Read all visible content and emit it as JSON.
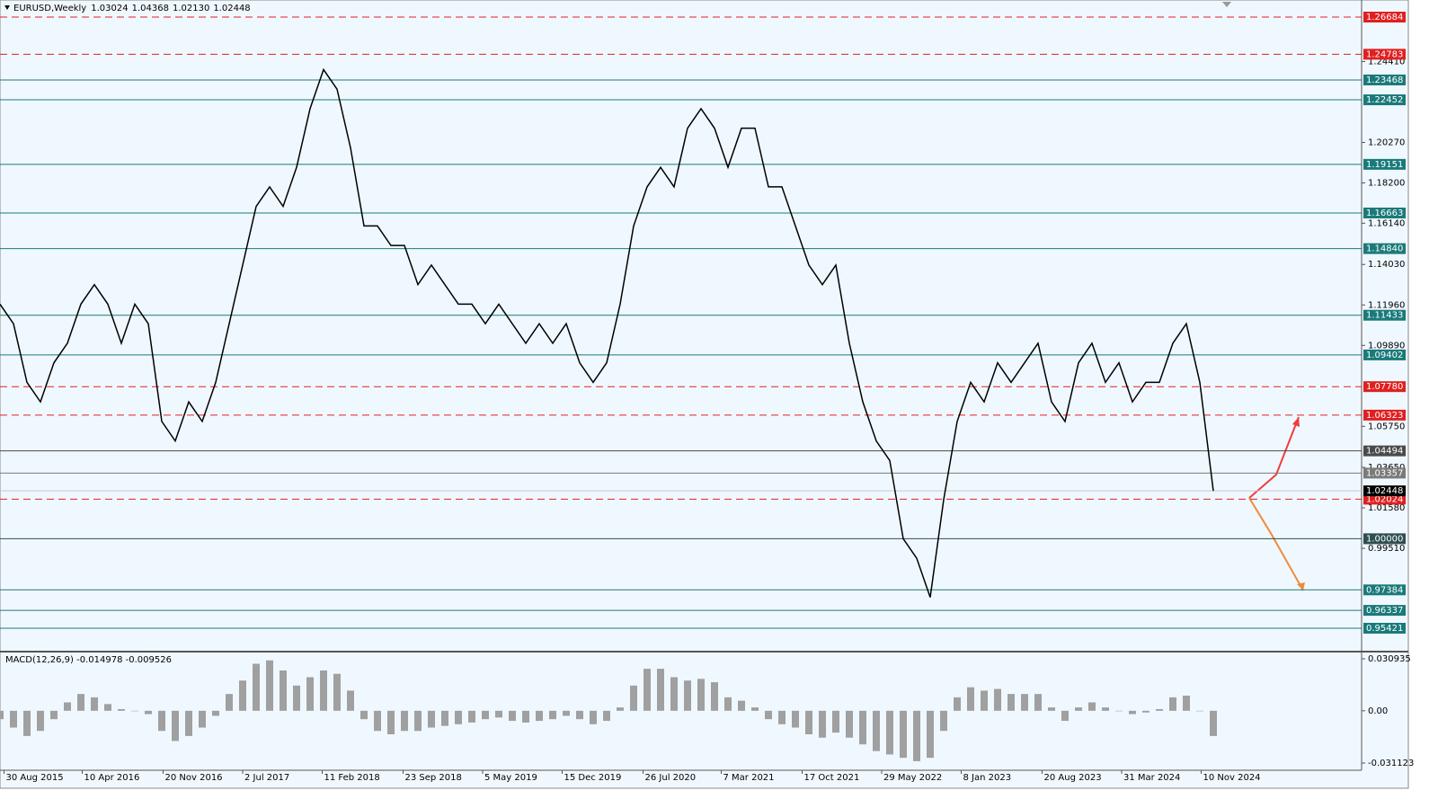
{
  "chart_data": {
    "type": "line",
    "symbol": "EURUSD,Weekly",
    "open": 1.03024,
    "high": 1.04368,
    "low": 1.0213,
    "close": 1.02448,
    "ohlc_labels": [
      "1.03024",
      "1.04368",
      "1.02130",
      "1.02448"
    ],
    "current_price": 1.02448,
    "xlim": [
      0,
      101
    ],
    "xticks": [
      {
        "value": 0.3,
        "label": "30 Aug 2015"
      },
      {
        "value": 6.1,
        "label": "10 Apr 2016"
      },
      {
        "value": 12.1,
        "label": "20 Nov 2016"
      },
      {
        "value": 18,
        "label": "2 Jul 2017"
      },
      {
        "value": 23.9,
        "label": "11 Feb 2018"
      },
      {
        "value": 29.9,
        "label": "23 Sep 2018"
      },
      {
        "value": 35.8,
        "label": "5 May 2019"
      },
      {
        "value": 41.7,
        "label": "15 Dec 2019"
      },
      {
        "value": 47.7,
        "label": "26 Jul 2020"
      },
      {
        "value": 53.5,
        "label": "7 Mar 2021"
      },
      {
        "value": 59.5,
        "label": "17 Oct 2021"
      },
      {
        "value": 65.4,
        "label": "29 May 2022"
      },
      {
        "value": 71.3,
        "label": "8 Jan 2023"
      },
      {
        "value": 77.3,
        "label": "20 Aug 2023"
      },
      {
        "value": 83.2,
        "label": "31 Mar 2024"
      },
      {
        "value": 89.1,
        "label": "10 Nov 2024"
      }
    ],
    "ylim": [
      0.94226,
      1.27558
    ],
    "yticks": [
      {
        "value": 1.2441,
        "label": "1.24410"
      },
      {
        "value": 1.2027,
        "label": "1.20270"
      },
      {
        "value": 1.182,
        "label": "1.18200"
      },
      {
        "value": 1.1614,
        "label": "1.16140"
      },
      {
        "value": 1.1403,
        "label": "1.14030"
      },
      {
        "value": 1.1196,
        "label": "1.11960"
      },
      {
        "value": 1.0989,
        "label": "1.09890"
      },
      {
        "value": 1.0575,
        "label": "1.05750"
      },
      {
        "value": 1.0365,
        "label": "1.03650"
      },
      {
        "value": 1.0158,
        "label": "1.01580"
      },
      {
        "value": 0.9951,
        "label": "0.99510"
      }
    ],
    "levels": [
      {
        "value": 1.26684,
        "color": "#e02020",
        "style": "dashed"
      },
      {
        "value": 1.24783,
        "color": "#e02020",
        "style": "dashed"
      },
      {
        "value": 1.23468,
        "color": "#1a7a7a",
        "style": "solid"
      },
      {
        "value": 1.22452,
        "color": "#1a7a7a",
        "style": "solid"
      },
      {
        "value": 1.19151,
        "color": "#1a7a7a",
        "style": "solid"
      },
      {
        "value": 1.16663,
        "color": "#1a7a7a",
        "style": "solid"
      },
      {
        "value": 1.1484,
        "label": "1.14840",
        "color": "#1a7a7a",
        "style": "solid"
      },
      {
        "value": 1.11433,
        "color": "#1a7a7a",
        "style": "solid"
      },
      {
        "value": 1.09402,
        "color": "#1a7a7a",
        "style": "solid"
      },
      {
        "value": 1.0778,
        "label": "1.07780",
        "color": "#e02020",
        "style": "dashed"
      },
      {
        "value": 1.06323,
        "color": "#e02020",
        "style": "dashed"
      },
      {
        "value": 1.04494,
        "color": "#4a4a4a",
        "style": "solid"
      },
      {
        "value": 1.03357,
        "color": "#7a7a7a",
        "style": "solid"
      },
      {
        "value": 1.02024,
        "color": "#e02020",
        "style": "dashed"
      },
      {
        "value": 1,
        "label": "1.00000",
        "color": "#2f4f4f",
        "style": "solid"
      },
      {
        "value": 0.97384,
        "color": "#1a7a7a",
        "style": "solid"
      },
      {
        "value": 0.96337,
        "color": "#1a7a7a",
        "style": "solid"
      },
      {
        "value": 0.95421,
        "color": "#1a7a7a",
        "style": "solid"
      }
    ],
    "series": [
      {
        "name": "EURUSD",
        "color": "#000000",
        "values": [
          1.12,
          1.11,
          1.08,
          1.07,
          1.09,
          1.1,
          1.12,
          1.13,
          1.12,
          1.1,
          1.12,
          1.11,
          1.06,
          1.05,
          1.07,
          1.06,
          1.08,
          1.11,
          1.14,
          1.17,
          1.18,
          1.17,
          1.19,
          1.22,
          1.24,
          1.23,
          1.2,
          1.16,
          1.16,
          1.15,
          1.15,
          1.13,
          1.14,
          1.13,
          1.12,
          1.12,
          1.11,
          1.12,
          1.11,
          1.1,
          1.11,
          1.1,
          1.11,
          1.09,
          1.08,
          1.09,
          1.12,
          1.16,
          1.18,
          1.19,
          1.18,
          1.21,
          1.22,
          1.21,
          1.19,
          1.21,
          1.21,
          1.18,
          1.18,
          1.16,
          1.14,
          1.13,
          1.14,
          1.1,
          1.07,
          1.05,
          1.04,
          1.0,
          0.99,
          0.97,
          1.02,
          1.06,
          1.08,
          1.07,
          1.09,
          1.08,
          1.09,
          1.1,
          1.07,
          1.06,
          1.09,
          1.1,
          1.08,
          1.09,
          1.07,
          1.08,
          1.08,
          1.1,
          1.11,
          1.08,
          1.02448
        ]
      }
    ],
    "macd": {
      "title": "MACD(12,26,9) -0.014978 -0.009526",
      "color": "#a0a0a0",
      "ylim": [
        -0.0354,
        0.03415
      ],
      "yticks": [
        0.030935,
        {
          "value": 0,
          "label": "0.00"
        },
        -0.031123
      ],
      "values": [
        -0.005,
        -0.01,
        -0.015,
        -0.012,
        -0.005,
        0.005,
        0.01,
        0.008,
        0.004,
        0.001,
        0.0,
        -0.002,
        -0.012,
        -0.018,
        -0.015,
        -0.01,
        -0.003,
        0.01,
        0.018,
        0.028,
        0.03,
        0.024,
        0.015,
        0.02,
        0.024,
        0.022,
        0.012,
        -0.005,
        -0.012,
        -0.014,
        -0.012,
        -0.012,
        -0.01,
        -0.009,
        -0.008,
        -0.007,
        -0.005,
        -0.004,
        -0.006,
        -0.007,
        -0.006,
        -0.005,
        -0.003,
        -0.005,
        -0.008,
        -0.006,
        0.002,
        0.015,
        0.025,
        0.025,
        0.02,
        0.018,
        0.019,
        0.017,
        0.008,
        0.006,
        0.002,
        -0.005,
        -0.008,
        -0.01,
        -0.014,
        -0.016,
        -0.013,
        -0.016,
        -0.02,
        -0.024,
        -0.026,
        -0.028,
        -0.03,
        -0.028,
        -0.012,
        0.008,
        0.014,
        0.012,
        0.013,
        0.01,
        0.01,
        0.01,
        0.002,
        -0.006,
        0.002,
        0.005,
        0.002,
        0.0,
        -0.002,
        -0.001,
        0.001,
        0.008,
        0.009,
        0.0,
        -0.015
      ]
    }
  }
}
